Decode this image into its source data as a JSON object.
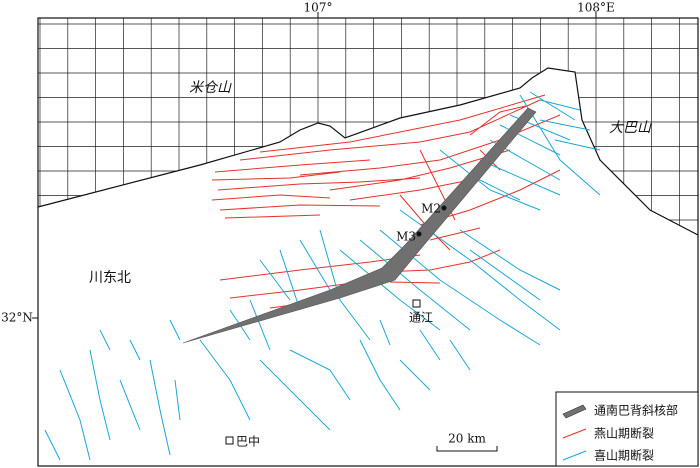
{
  "axes": {
    "x_labels": [
      "107°",
      "108°E"
    ],
    "y_labels": [
      "32°N"
    ]
  },
  "places": {
    "mountains": [
      "米仓山",
      "大巴山"
    ],
    "region": "川东北",
    "cities": [
      "通江",
      "巴中"
    ]
  },
  "samples": [
    "M2",
    "M3"
  ],
  "scale_bar": "20 km",
  "legend": [
    "通南巴背斜核部",
    "燕山期断裂",
    "喜山期断裂"
  ]
}
